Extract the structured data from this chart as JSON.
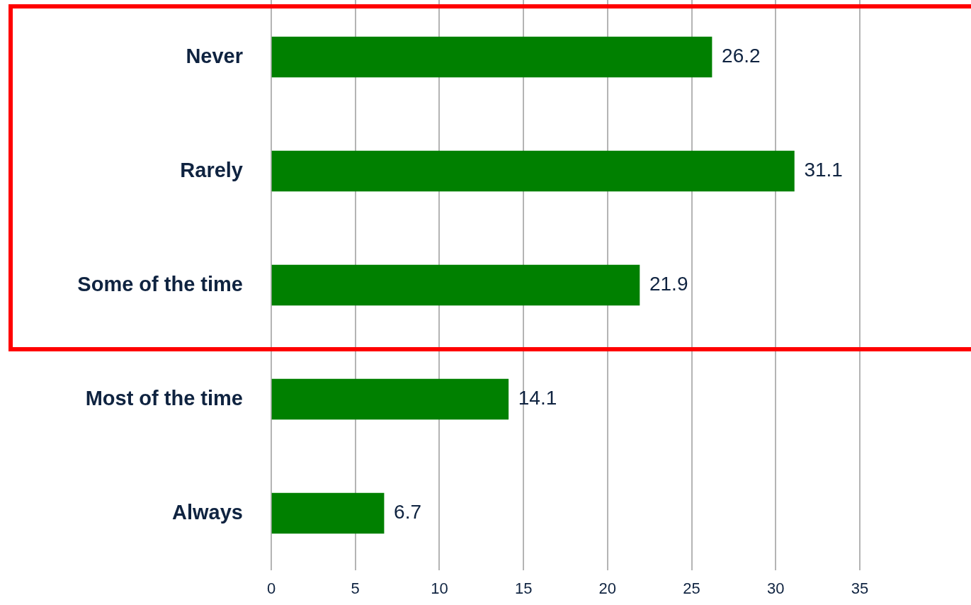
{
  "chart_data": {
    "type": "bar",
    "orientation": "horizontal",
    "categories": [
      "Never",
      "Rarely",
      "Some of the time",
      "Most of the time",
      "Always"
    ],
    "values": [
      26.2,
      31.1,
      21.9,
      14.1,
      6.7
    ],
    "color": "#008000",
    "xlim": [
      0,
      35
    ],
    "xticks": [
      0,
      5,
      10,
      15,
      20,
      25,
      30,
      35
    ],
    "grid": "x",
    "data_labels": true
  }
}
